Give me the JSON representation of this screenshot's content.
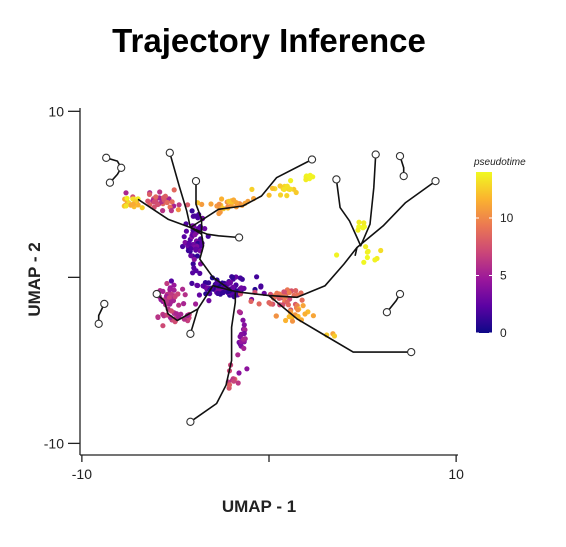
{
  "title": "Trajectory Inference",
  "chart_data": {
    "type": "scatter",
    "title": "Trajectory Inference",
    "xlabel": "UMAP - 1",
    "ylabel": "UMAP - 2",
    "xlim": [
      -10.1,
      10.1
    ],
    "ylim": [
      -10.7,
      10.2
    ],
    "xticks": [
      -10,
      0,
      10
    ],
    "xtick_labels": [
      "-10",
      "",
      "10"
    ],
    "yticks": [
      10,
      0,
      -10
    ],
    "ytick_labels": [
      "10",
      "",
      "-10"
    ],
    "color_by": "pseudotime",
    "legend": {
      "title": "pseudotime",
      "position": "right",
      "ticks": [
        0,
        5,
        10
      ],
      "range": [
        0,
        14
      ],
      "colors": [
        "#0d0887",
        "#5b02a3",
        "#9a179b",
        "#cb4678",
        "#eb7852",
        "#fbb32f",
        "#f0f921"
      ]
    },
    "grid": false,
    "clusters": [
      {
        "center": [
          -4.0,
          2.3
        ],
        "spread": [
          0.5,
          1.4
        ],
        "count": 60,
        "pt": [
          1.0,
          4.0
        ]
      },
      {
        "center": [
          -2.5,
          -0.6
        ],
        "spread": [
          1.3,
          0.55
        ],
        "count": 90,
        "pt": [
          0.5,
          3.5
        ]
      },
      {
        "center": [
          -5.8,
          4.6
        ],
        "spread": [
          1.2,
          0.4
        ],
        "count": 35,
        "pt": [
          5.0,
          9.0
        ]
      },
      {
        "center": [
          -7.3,
          4.5
        ],
        "spread": [
          0.5,
          0.4
        ],
        "count": 18,
        "pt": [
          11.0,
          14.0
        ]
      },
      {
        "center": [
          -2.4,
          4.4
        ],
        "spread": [
          1.2,
          0.35
        ],
        "count": 28,
        "pt": [
          10.0,
          12.5
        ]
      },
      {
        "center": [
          0.5,
          5.3
        ],
        "spread": [
          1.1,
          0.35
        ],
        "count": 16,
        "pt": [
          12.0,
          13.5
        ]
      },
      {
        "center": [
          1.5,
          6.0
        ],
        "spread": [
          0.6,
          0.25
        ],
        "count": 8,
        "pt": [
          13.5,
          14.0
        ]
      },
      {
        "center": [
          -5.3,
          -1.4
        ],
        "spread": [
          0.7,
          0.9
        ],
        "count": 42,
        "pt": [
          4.0,
          7.5
        ]
      },
      {
        "center": [
          -5.1,
          -2.4
        ],
        "spread": [
          0.9,
          0.3
        ],
        "count": 20,
        "pt": [
          5.0,
          7.5
        ]
      },
      {
        "center": [
          -1.5,
          -3.6
        ],
        "spread": [
          0.3,
          1.2
        ],
        "count": 22,
        "pt": [
          3.0,
          6.0
        ]
      },
      {
        "center": [
          -2.0,
          -6.0
        ],
        "spread": [
          0.25,
          0.8
        ],
        "count": 10,
        "pt": [
          6.0,
          8.5
        ]
      },
      {
        "center": [
          0.7,
          -1.3
        ],
        "spread": [
          1.3,
          0.5
        ],
        "count": 40,
        "pt": [
          7.0,
          10.0
        ]
      },
      {
        "center": [
          1.5,
          -2.2
        ],
        "spread": [
          0.9,
          0.35
        ],
        "count": 18,
        "pt": [
          10.0,
          12.5
        ]
      },
      {
        "center": [
          4.8,
          3.2
        ],
        "spread": [
          0.3,
          0.5
        ],
        "count": 7,
        "pt": [
          13.5,
          14.0
        ]
      },
      {
        "center": [
          5.3,
          1.6
        ],
        "spread": [
          0.7,
          0.5
        ],
        "count": 9,
        "pt": [
          13.0,
          14.0
        ]
      },
      {
        "center": [
          3.4,
          -3.4
        ],
        "spread": [
          0.3,
          0.2
        ],
        "count": 3,
        "pt": [
          11.0,
          12.5
        ]
      }
    ],
    "trajectory": [
      [
        [
          -8.7,
          7.2
        ],
        [
          -8.1,
          7.0
        ],
        [
          -7.9,
          6.6
        ],
        [
          -8.1,
          6.2
        ],
        [
          -8.5,
          5.7
        ]
      ],
      [
        [
          -5.3,
          7.5
        ],
        [
          -4.8,
          5.5
        ],
        [
          -4.4,
          4.0
        ],
        [
          -4.2,
          3.0
        ]
      ],
      [
        [
          -7.0,
          4.7
        ],
        [
          -5.4,
          3.5
        ],
        [
          -4.2,
          3.0
        ],
        [
          -3.6,
          2.6
        ],
        [
          -3.5,
          1.9
        ],
        [
          -3.7,
          1.1
        ],
        [
          -3.0,
          0.0
        ],
        [
          -2.0,
          -0.8
        ],
        [
          -1.5,
          -0.9
        ],
        [
          0.0,
          -1.1
        ],
        [
          1.5,
          -1.2
        ],
        [
          3.0,
          -0.5
        ],
        [
          4.0,
          0.8
        ],
        [
          4.7,
          1.8
        ],
        [
          6.1,
          3.1
        ],
        [
          7.3,
          4.5
        ],
        [
          8.9,
          5.8
        ]
      ],
      [
        [
          -3.9,
          5.8
        ],
        [
          -3.9,
          4.4
        ],
        [
          -3.6,
          3.5
        ],
        [
          -3.6,
          2.6
        ]
      ],
      [
        [
          -4.2,
          3.0
        ],
        [
          -3.3,
          2.6
        ],
        [
          -2.7,
          2.5
        ],
        [
          -1.6,
          2.4
        ]
      ],
      [
        [
          -4.2,
          3.0
        ],
        [
          -2.7,
          4.1
        ],
        [
          -1.4,
          4.3
        ],
        [
          -0.4,
          4.9
        ],
        [
          0.4,
          6.0
        ],
        [
          2.3,
          7.1
        ]
      ],
      [
        [
          3.6,
          5.9
        ],
        [
          3.8,
          4.2
        ],
        [
          4.3,
          3.4
        ],
        [
          4.7,
          2.4
        ],
        [
          4.9,
          1.9
        ],
        [
          5.4,
          3.2
        ],
        [
          5.6,
          5.4
        ],
        [
          5.7,
          7.4
        ]
      ],
      [
        [
          4.7,
          1.8
        ],
        [
          4.6,
          1.3
        ]
      ],
      [
        [
          -6.0,
          -1.0
        ],
        [
          -5.6,
          -1.4
        ],
        [
          -5.4,
          -2.2
        ],
        [
          -4.9,
          -2.6
        ],
        [
          -3.8,
          -1.9
        ],
        [
          -3.0,
          -0.5
        ],
        [
          -2.0,
          -0.8
        ]
      ],
      [
        [
          -4.2,
          -3.4
        ],
        [
          -3.8,
          -1.9
        ]
      ],
      [
        [
          -1.8,
          -0.9
        ],
        [
          -1.8,
          -1.5
        ],
        [
          -2.0,
          -3.0
        ],
        [
          -2.0,
          -5.0
        ],
        [
          -2.3,
          -6.5
        ],
        [
          -2.8,
          -7.6
        ],
        [
          -4.2,
          -8.7
        ]
      ],
      [
        [
          0.0,
          -1.1
        ],
        [
          1.5,
          -2.5
        ],
        [
          3.0,
          -3.5
        ],
        [
          4.5,
          -4.5
        ],
        [
          7.6,
          -4.5
        ]
      ],
      [
        [
          7.0,
          7.3
        ],
        [
          7.2,
          6.6
        ],
        [
          7.2,
          6.1
        ]
      ],
      [
        [
          -9.1,
          -2.8
        ],
        [
          -9.1,
          -2.3
        ],
        [
          -8.8,
          -1.6
        ]
      ],
      [
        [
          7.0,
          -1.0
        ],
        [
          6.8,
          -1.4
        ],
        [
          6.3,
          -2.1
        ]
      ]
    ],
    "endpoints": [
      [
        -8.7,
        7.2
      ],
      [
        -8.5,
        5.7
      ],
      [
        -7.9,
        6.6
      ],
      [
        -5.3,
        7.5
      ],
      [
        -3.9,
        5.8
      ],
      [
        -1.6,
        2.4
      ],
      [
        2.3,
        7.1
      ],
      [
        3.6,
        5.9
      ],
      [
        5.7,
        7.4
      ],
      [
        7.0,
        7.3
      ],
      [
        7.2,
        6.1
      ],
      [
        8.9,
        5.8
      ],
      [
        -9.1,
        -2.8
      ],
      [
        -8.8,
        -1.6
      ],
      [
        -6.0,
        -1.0
      ],
      [
        -4.2,
        -3.4
      ],
      [
        -4.2,
        -8.7
      ],
      [
        7.6,
        -4.5
      ],
      [
        7.0,
        -1.0
      ],
      [
        6.3,
        -2.1
      ]
    ]
  }
}
